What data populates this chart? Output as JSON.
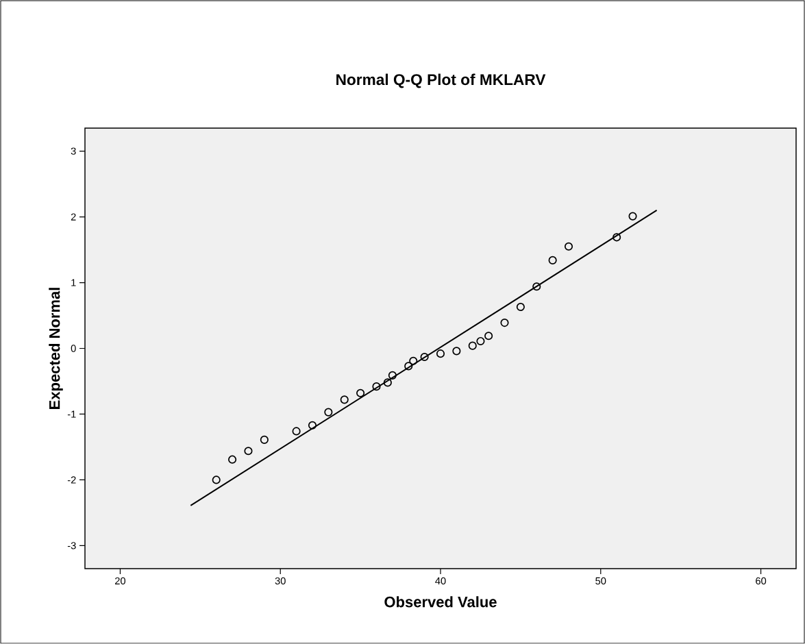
{
  "chart_data": {
    "type": "scatter",
    "title": "Normal Q-Q Plot of MKLARV",
    "xlabel": "Observed Value",
    "ylabel": "Expected Normal",
    "xlim": [
      17.8,
      62.2
    ],
    "ylim": [
      -3.35,
      3.35
    ],
    "xticks": [
      20,
      30,
      40,
      50,
      60
    ],
    "yticks": [
      -3,
      -2,
      -1,
      0,
      1,
      2,
      3
    ],
    "grid": false,
    "series": [
      {
        "marker": "circle",
        "color": "#000000",
        "x": [
          26,
          27,
          28,
          29,
          31,
          32,
          33,
          34,
          35,
          36,
          36.7,
          37,
          38,
          38.3,
          39,
          40,
          41,
          42,
          42.5,
          43,
          44,
          45,
          46,
          47,
          48,
          51,
          52
        ],
        "values": [
          -2.0,
          -1.69,
          -1.56,
          -1.39,
          -1.26,
          -1.17,
          -0.97,
          -0.78,
          -0.68,
          -0.58,
          -0.52,
          -0.41,
          -0.27,
          -0.19,
          -0.13,
          -0.08,
          -0.04,
          0.04,
          0.11,
          0.19,
          0.39,
          0.63,
          0.94,
          1.34,
          1.55,
          1.69,
          2.01
        ]
      },
      {
        "type": "line",
        "marker": "none",
        "line_style": "solid",
        "color": "#000000",
        "x": [
          24.4,
          53.5
        ],
        "values": [
          -2.39,
          2.1
        ]
      }
    ]
  }
}
